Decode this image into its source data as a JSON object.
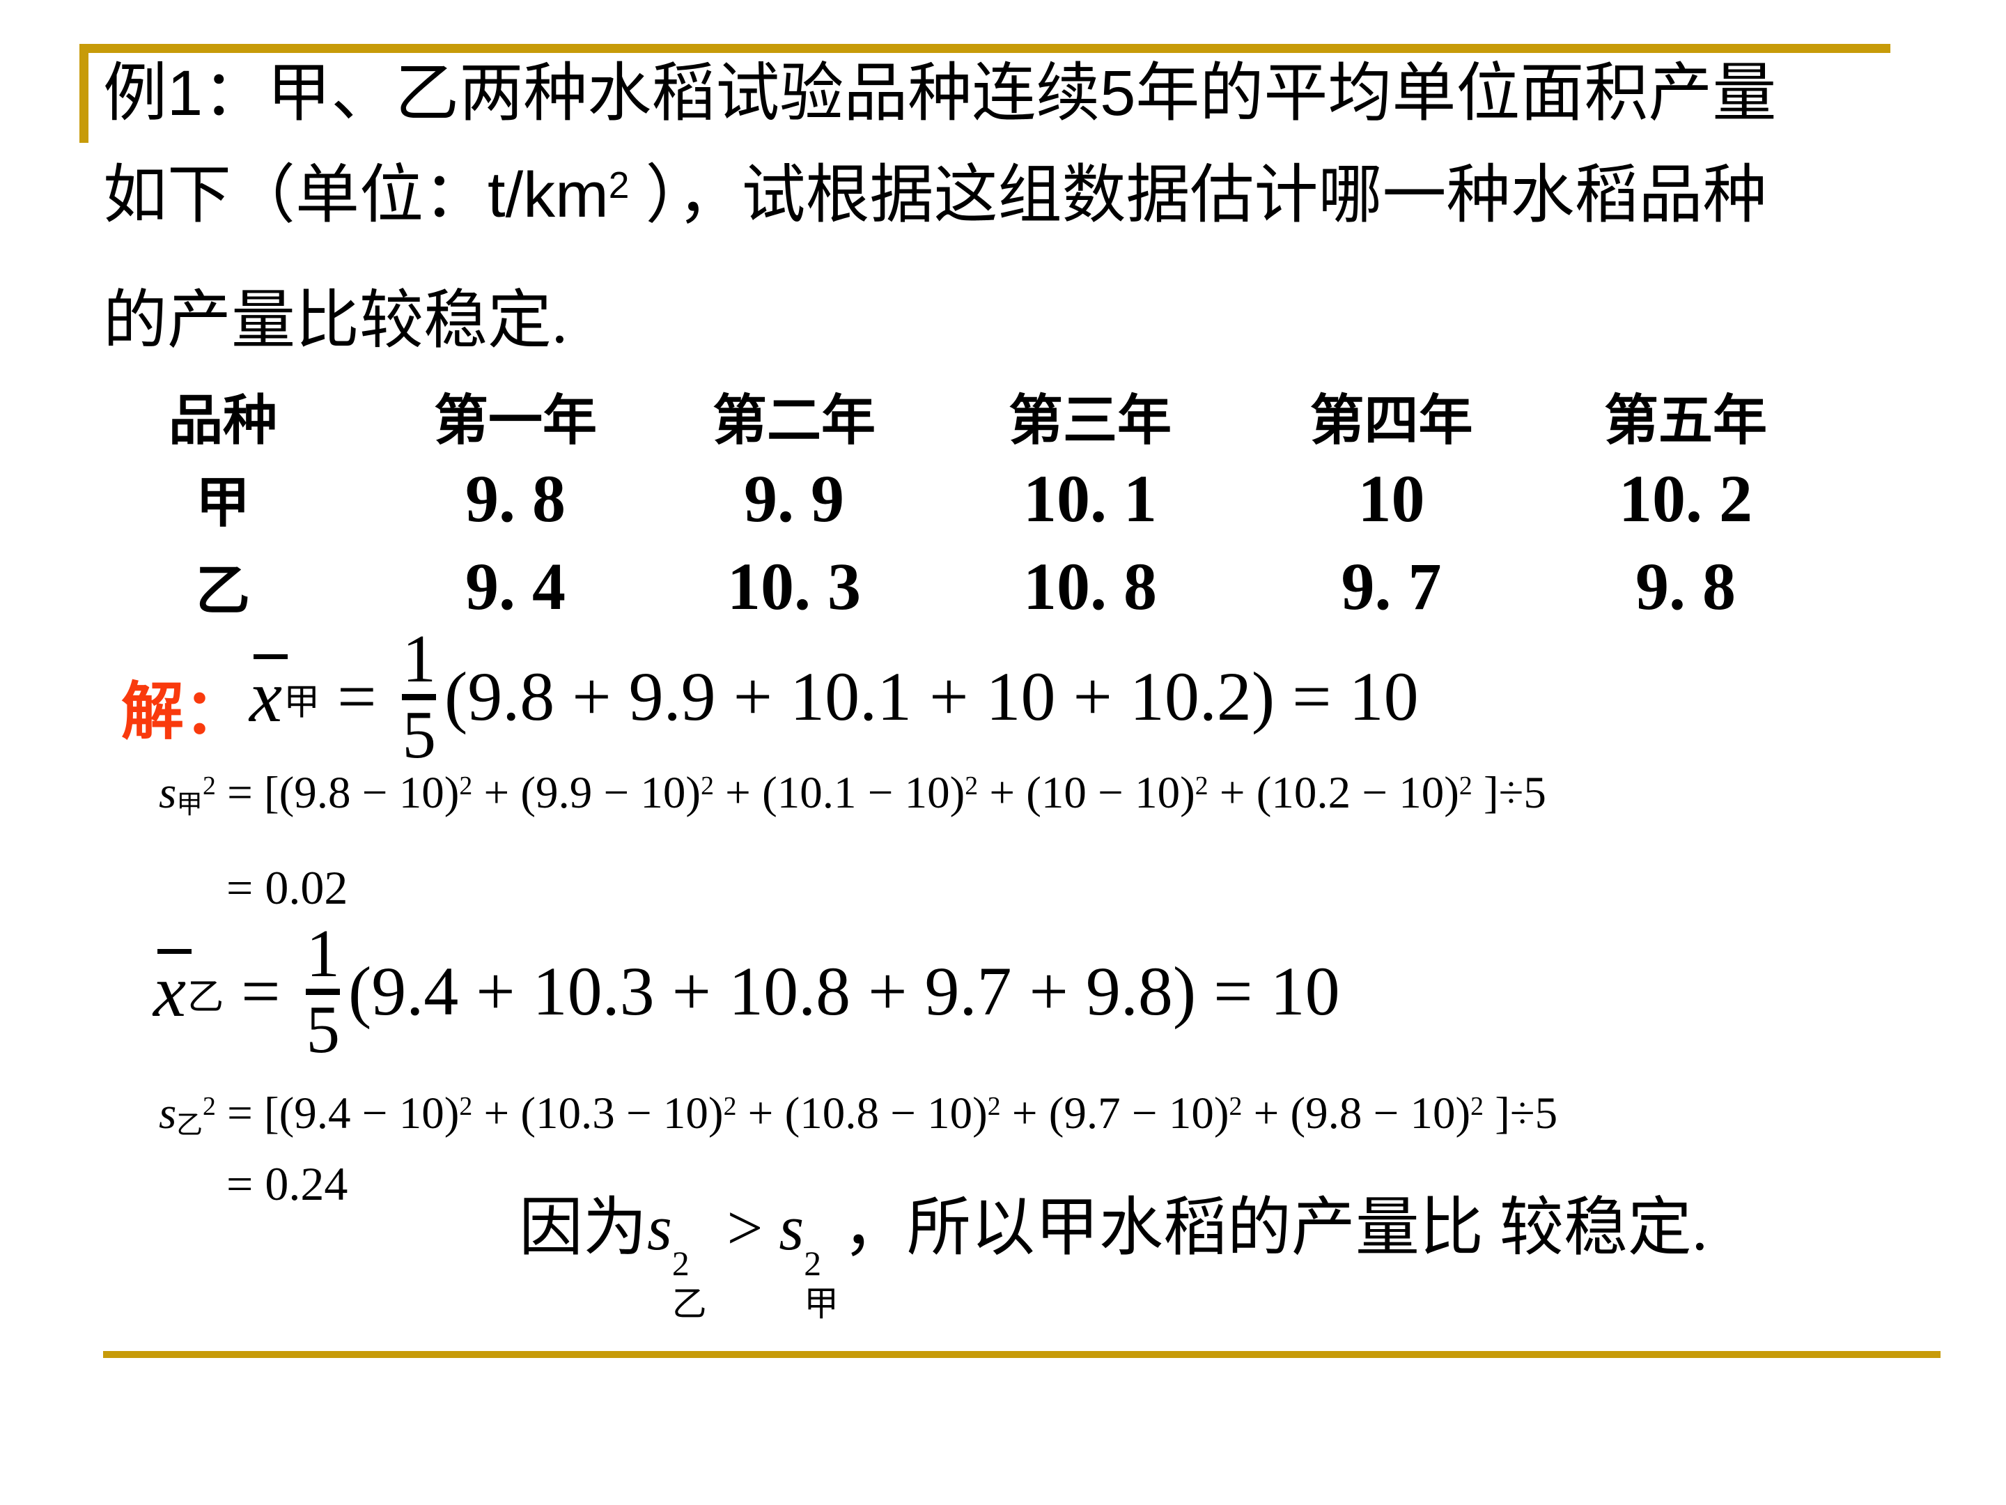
{
  "colors": {
    "background": "#FFFFFF",
    "text": "#000000",
    "accent_gold": "#C79B09",
    "solve_red": "#F93A0D"
  },
  "problem": {
    "line1_runs": [
      {
        "k": "t",
        "v": "例"
      },
      {
        "k": "t",
        "v": "1",
        "sans": true
      },
      {
        "k": "t",
        "v": "：甲、乙两种水稻试验品种连续"
      },
      {
        "k": "t",
        "v": "5",
        "sans": true
      },
      {
        "k": "t",
        "v": "年的平均单位面积产量"
      }
    ],
    "line2_runs": [
      {
        "k": "t",
        "v": "如下（单位："
      },
      {
        "k": "t",
        "v": "t/km",
        "sans": true
      },
      {
        "k": "sup",
        "v": "2",
        "sans": true
      },
      {
        "k": "t",
        "v": " ），试根据这组数据估计哪一种水稻品种"
      }
    ],
    "line3": "的产量比较稳定."
  },
  "table": {
    "headers": [
      "品种",
      "第一年",
      "第二年",
      "第三年",
      "第四年",
      "第五年"
    ],
    "rows": [
      {
        "name": "甲",
        "values": [
          "9. 8",
          "9. 9",
          "10. 1",
          "10",
          "10. 2"
        ]
      },
      {
        "name": "乙",
        "values": [
          "9. 4",
          "10. 3",
          "10. 8",
          "9. 7",
          "9. 8"
        ]
      }
    ]
  },
  "solution": {
    "label": "解：",
    "mean_jia_runs": [
      {
        "k": "bar",
        "v": "x"
      },
      {
        "k": "sub",
        "v": "甲"
      },
      {
        "k": "t",
        "v": " = "
      },
      {
        "k": "frac",
        "num": "1",
        "den": "5"
      },
      {
        "k": "t",
        "v": "(9.8 + 9.9 + 10.1 + 10 + 10.2) = 10"
      }
    ],
    "var_jia_runs": [
      {
        "k": "it",
        "v": "s"
      },
      {
        "k": "sub",
        "v": "甲"
      },
      {
        "k": "sup",
        "v": "2"
      },
      {
        "k": "t",
        "v": " = [(9.8 − 10)"
      },
      {
        "k": "sup",
        "v": "2"
      },
      {
        "k": "t",
        "v": " + (9.9 − 10)"
      },
      {
        "k": "sup",
        "v": "2"
      },
      {
        "k": "t",
        "v": " + (10.1 − 10)"
      },
      {
        "k": "sup",
        "v": "2"
      },
      {
        "k": "t",
        "v": " + (10 − 10)"
      },
      {
        "k": "sup",
        "v": "2"
      },
      {
        "k": "t",
        "v": " + (10.2 − 10)"
      },
      {
        "k": "sup",
        "v": "2"
      },
      {
        "k": "t",
        "v": " ]÷5"
      }
    ],
    "var_jia_result": "= 0.02",
    "mean_yi_runs": [
      {
        "k": "bar",
        "v": "x"
      },
      {
        "k": "sub",
        "v": "乙"
      },
      {
        "k": "t",
        "v": " = "
      },
      {
        "k": "frac",
        "num": "1",
        "den": "5"
      },
      {
        "k": "t",
        "v": "(9.4 + 10.3 + 10.8 + 9.7 + 9.8) = 10"
      }
    ],
    "var_yi_runs": [
      {
        "k": "it",
        "v": "s"
      },
      {
        "k": "sub",
        "v": "乙"
      },
      {
        "k": "sup",
        "v": "2"
      },
      {
        "k": "t",
        "v": " = [(9.4 − 10)"
      },
      {
        "k": "sup",
        "v": "2"
      },
      {
        "k": "t",
        "v": " + (10.3 − 10)"
      },
      {
        "k": "sup",
        "v": "2"
      },
      {
        "k": "t",
        "v": " + (10.8 − 10)"
      },
      {
        "k": "sup",
        "v": "2"
      },
      {
        "k": "t",
        "v": " + (9.7 − 10)"
      },
      {
        "k": "sup",
        "v": "2"
      },
      {
        "k": "t",
        "v": " + (9.8 − 10)"
      },
      {
        "k": "sup",
        "v": "2"
      },
      {
        "k": "t",
        "v": " ]÷5"
      }
    ],
    "var_yi_result": "= 0.24",
    "conclusion_runs": [
      {
        "k": "t",
        "v": "因为"
      },
      {
        "k": "it",
        "v": "s"
      },
      {
        "k": "stack",
        "sup": "2",
        "sub": "乙"
      },
      {
        "k": "t",
        "v": " > "
      },
      {
        "k": "it",
        "v": "s"
      },
      {
        "k": "stack",
        "sup": "2",
        "sub": "甲"
      },
      {
        "k": "t",
        "v": "，所以甲水稻的产量比 较稳定."
      }
    ]
  }
}
